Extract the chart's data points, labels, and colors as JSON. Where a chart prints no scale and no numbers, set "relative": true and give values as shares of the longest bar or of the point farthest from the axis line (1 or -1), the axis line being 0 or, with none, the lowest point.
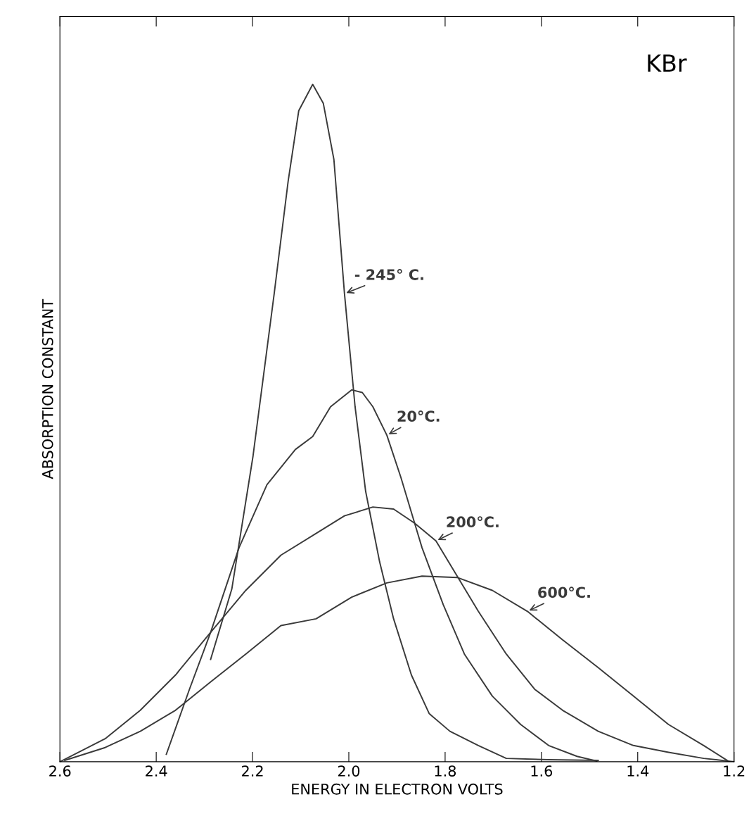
{
  "chart_data": {
    "type": "line",
    "title": "KBr",
    "xlabel": "ENERGY IN ELECTRON VOLTS",
    "ylabel": "ABSORPTION CONSTANT",
    "relative": true,
    "xlim": [
      2.6,
      1.2
    ],
    "xticks": [
      2.6,
      2.4,
      2.2,
      {
        "value": 2.0,
        "label": "2.0"
      },
      1.8,
      1.6,
      1.4,
      1.2
    ],
    "grid": false,
    "legend": false,
    "line_style": "solid",
    "marker": "none",
    "series": [
      {
        "name": "- 245° C.",
        "color": "#3a3a3a",
        "x": [
          2.287,
          2.243,
          2.199,
          2.155,
          2.126,
          2.104,
          2.075,
          2.053,
          2.031,
          2.009,
          1.987,
          1.965,
          1.936,
          1.907,
          1.87,
          1.833,
          1.79,
          1.731,
          1.673,
          1.585,
          1.482
        ],
        "values": [
          0.151,
          0.255,
          0.451,
          0.691,
          0.857,
          0.961,
          1.0,
          0.972,
          0.889,
          0.691,
          0.524,
          0.399,
          0.295,
          0.211,
          0.128,
          0.071,
          0.045,
          0.024,
          0.005,
          0.003,
          0.002
        ]
      },
      {
        "name": "20°C.",
        "color": "#3a3a3a",
        "x": [
          2.379,
          2.331,
          2.287,
          2.228,
          2.17,
          2.111,
          2.075,
          2.038,
          1.994,
          1.972,
          1.95,
          1.921,
          1.892,
          1.848,
          1.804,
          1.76,
          1.702,
          1.643,
          1.585,
          1.526,
          1.485
        ],
        "values": [
          0.011,
          0.107,
          0.191,
          0.316,
          0.409,
          0.461,
          0.48,
          0.524,
          0.549,
          0.545,
          0.524,
          0.482,
          0.42,
          0.316,
          0.232,
          0.159,
          0.097,
          0.055,
          0.024,
          0.008,
          0.001
        ]
      },
      {
        "name": "200°C.",
        "color": "#3a3a3a",
        "x": [
          2.6,
          2.506,
          2.433,
          2.36,
          2.287,
          2.214,
          2.141,
          2.068,
          2.009,
          1.95,
          1.907,
          1.863,
          1.819,
          1.775,
          1.731,
          1.673,
          1.614,
          1.556,
          1.482,
          1.409,
          1.336,
          1.263,
          1.2
        ],
        "values": [
          0,
          0.034,
          0.076,
          0.128,
          0.191,
          0.253,
          0.305,
          0.337,
          0.363,
          0.376,
          0.373,
          0.352,
          0.326,
          0.274,
          0.222,
          0.159,
          0.107,
          0.076,
          0.045,
          0.024,
          0.014,
          0.005,
          0
        ]
      },
      {
        "name": "600°C.",
        "color": "#3a3a3a",
        "x": [
          2.59,
          2.506,
          2.433,
          2.36,
          2.287,
          2.214,
          2.141,
          2.068,
          1.994,
          1.921,
          1.848,
          1.775,
          1.702,
          1.629,
          1.556,
          1.482,
          1.409,
          1.336,
          1.263,
          1.21
        ],
        "values": [
          0.002,
          0.021,
          0.045,
          0.076,
          0.118,
          0.159,
          0.201,
          0.211,
          0.243,
          0.264,
          0.274,
          0.272,
          0.253,
          0.222,
          0.18,
          0.139,
          0.097,
          0.055,
          0.024,
          0
        ]
      }
    ]
  }
}
